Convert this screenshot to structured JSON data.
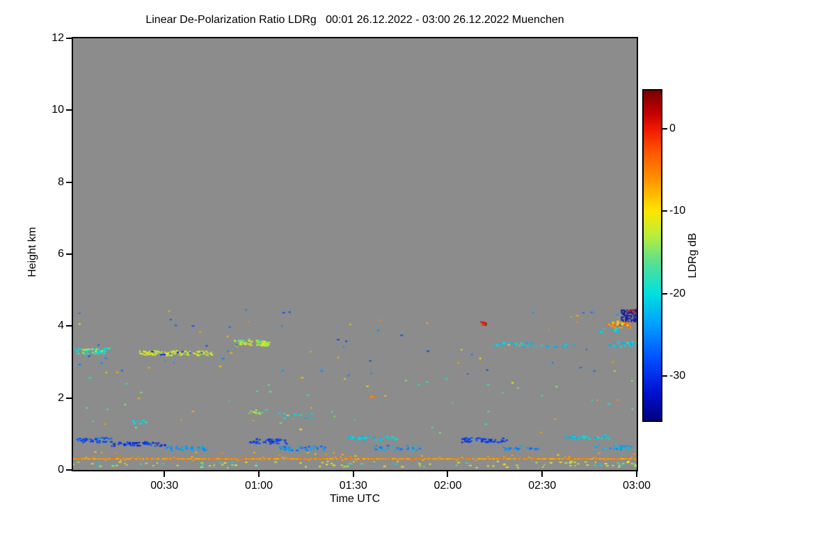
{
  "chart_data": {
    "type": "heatmap",
    "title": "Linear De-Polarization Ratio LDRg   00:01 26.12.2022 - 03:00 26.12.2022 Muenchen",
    "xlabel": "Time UTC",
    "ylabel": "Height km",
    "x_domain": [
      1,
      180
    ],
    "x_ticks": [
      "00:30",
      "01:00",
      "01:30",
      "02:00",
      "02:30",
      "03:00"
    ],
    "x_tick_minutes": [
      30,
      60,
      90,
      120,
      150,
      180
    ],
    "ylim": [
      0,
      12
    ],
    "y_ticks": [
      0,
      2,
      4,
      6,
      8,
      10,
      12
    ],
    "grid": false,
    "background_color": "#8c8c8c",
    "colorbar": {
      "label": "LDRg dB",
      "ticks": [
        0,
        -10,
        -20,
        -30
      ],
      "range": [
        4.6,
        -35.4
      ],
      "position": "right",
      "stops": [
        [
          4.6,
          "#7a0000"
        ],
        [
          2,
          "#c00000"
        ],
        [
          0,
          "#f01800"
        ],
        [
          -3,
          "#ff5a00"
        ],
        [
          -6,
          "#ff9000"
        ],
        [
          -10,
          "#ffe600"
        ],
        [
          -13,
          "#baee3a"
        ],
        [
          -16,
          "#5fe08c"
        ],
        [
          -20,
          "#00e0e0"
        ],
        [
          -24,
          "#009cff"
        ],
        [
          -28,
          "#004eff"
        ],
        [
          -32,
          "#0012d0"
        ],
        [
          -35.4,
          "#000080"
        ]
      ]
    },
    "features": [
      {
        "name": "aerosol-surface-line",
        "style": "line",
        "t0": 1,
        "t1": 180,
        "h": 0.31,
        "value": -6
      },
      {
        "name": "surface-specks-below-warm",
        "style": "specks",
        "t0": 1,
        "t1": 180,
        "h0": 0.08,
        "h1": 0.26,
        "value": -12,
        "density": 0.045
      },
      {
        "name": "surface-specks-below-cyan",
        "style": "specks",
        "t0": 1,
        "t1": 180,
        "h0": 0.1,
        "h1": 0.24,
        "value": -19,
        "density": 0.02
      },
      {
        "name": "surface-specks-above",
        "style": "specks",
        "t0": 1,
        "t1": 180,
        "h0": 0.38,
        "h1": 0.52,
        "value": -7,
        "density": 0.018
      },
      {
        "name": "low-band",
        "style": "specks",
        "t0": 2,
        "t1": 13,
        "h0": 0.78,
        "h1": 0.92,
        "value": -28,
        "density": 0.5
      },
      {
        "name": "low-band",
        "style": "specks",
        "t0": 13,
        "t1": 31,
        "h0": 0.68,
        "h1": 0.8,
        "value": -30,
        "density": 0.45
      },
      {
        "name": "low-band",
        "style": "specks",
        "t0": 30,
        "t1": 43,
        "h0": 0.56,
        "h1": 0.68,
        "value": -24,
        "density": 0.4
      },
      {
        "name": "low-band",
        "style": "specks",
        "t0": 57,
        "t1": 69,
        "h0": 0.74,
        "h1": 0.88,
        "value": -29,
        "density": 0.45
      },
      {
        "name": "low-band",
        "style": "specks",
        "t0": 66,
        "t1": 81,
        "h0": 0.56,
        "h1": 0.68,
        "value": -25,
        "density": 0.35
      },
      {
        "name": "low-band",
        "style": "specks",
        "t0": 88,
        "t1": 104,
        "h0": 0.84,
        "h1": 0.96,
        "value": -21,
        "density": 0.4
      },
      {
        "name": "low-band",
        "style": "specks",
        "t0": 96,
        "t1": 111,
        "h0": 0.56,
        "h1": 0.7,
        "value": -24,
        "density": 0.3
      },
      {
        "name": "low-band",
        "style": "specks",
        "t0": 124,
        "t1": 139,
        "h0": 0.78,
        "h1": 0.92,
        "value": -29,
        "density": 0.45
      },
      {
        "name": "low-band",
        "style": "specks",
        "t0": 137,
        "t1": 149,
        "h0": 0.56,
        "h1": 0.68,
        "value": -25,
        "density": 0.3
      },
      {
        "name": "low-band",
        "style": "specks",
        "t0": 157,
        "t1": 171,
        "h0": 0.88,
        "h1": 1.0,
        "value": -21,
        "density": 0.4
      },
      {
        "name": "low-band",
        "style": "specks",
        "t0": 166,
        "t1": 178,
        "h0": 0.58,
        "h1": 0.72,
        "value": -23,
        "density": 0.3
      },
      {
        "name": "mid-layer",
        "style": "specks",
        "t0": 1,
        "t1": 12,
        "h0": 3.24,
        "h1": 3.4,
        "value": -19,
        "density": 0.5
      },
      {
        "name": "mid-layer",
        "style": "specks",
        "t0": 3,
        "t1": 10,
        "h0": 3.28,
        "h1": 3.38,
        "value": -12,
        "density": 0.3
      },
      {
        "name": "mid-layer",
        "style": "specks",
        "t0": 22,
        "t1": 45,
        "h0": 3.2,
        "h1": 3.33,
        "value": -12,
        "density": 0.55
      },
      {
        "name": "mid-layer",
        "style": "specks",
        "t0": 25,
        "t1": 42,
        "h0": 3.22,
        "h1": 3.31,
        "value": -30,
        "density": 0.1
      },
      {
        "name": "mid-layer",
        "style": "specks",
        "t0": 52,
        "t1": 63,
        "h0": 3.46,
        "h1": 3.62,
        "value": -12,
        "density": 0.6
      },
      {
        "name": "mid-layer",
        "style": "specks",
        "t0": 53,
        "t1": 61,
        "h0": 3.54,
        "h1": 3.66,
        "value": -16,
        "density": 0.2
      },
      {
        "name": "mid-layer",
        "style": "specks",
        "t0": 134,
        "t1": 147,
        "h0": 3.44,
        "h1": 3.56,
        "value": -21,
        "density": 0.3
      },
      {
        "name": "mid-layer",
        "style": "specks",
        "t0": 149,
        "t1": 160,
        "h0": 3.42,
        "h1": 3.52,
        "value": -22,
        "density": 0.25
      },
      {
        "name": "mid-layer",
        "style": "specks",
        "t0": 171,
        "t1": 180,
        "h0": 3.44,
        "h1": 3.58,
        "value": -21,
        "density": 0.35
      },
      {
        "name": "edge-cloud",
        "style": "specks",
        "t0": 167,
        "t1": 174,
        "h0": 3.84,
        "h1": 3.96,
        "value": -20,
        "density": 0.25
      },
      {
        "name": "edge-cloud",
        "style": "specks",
        "t0": 170,
        "t1": 178,
        "h0": 3.96,
        "h1": 4.12,
        "value": -5,
        "density": 0.55
      },
      {
        "name": "edge-cloud",
        "style": "specks",
        "t0": 172,
        "t1": 177,
        "h0": 4.04,
        "h1": 4.16,
        "value": -11,
        "density": 0.25
      },
      {
        "name": "edge-cloud-core",
        "style": "patch",
        "t0": 175,
        "t1": 180,
        "h0": 4.14,
        "h1": 4.46,
        "value": -34,
        "density": 0.7
      },
      {
        "name": "edge-cloud",
        "style": "specks",
        "t0": 177,
        "t1": 180,
        "h0": 4.38,
        "h1": 4.5,
        "value": -1,
        "density": 0.3
      },
      {
        "name": "isolated-red-dot",
        "style": "specks",
        "t0": 130,
        "t1": 132,
        "h0": 4.04,
        "h1": 4.14,
        "value": 0,
        "density": 0.9
      },
      {
        "name": "isolated-orange-dot",
        "style": "specks",
        "t0": 94,
        "t1": 96,
        "h0": 2.0,
        "h1": 2.08,
        "value": -6,
        "density": 0.9
      },
      {
        "name": "isolated-green",
        "style": "specks",
        "t0": 56,
        "t1": 61,
        "h0": 1.56,
        "h1": 1.68,
        "value": -14,
        "density": 0.3
      },
      {
        "name": "isolated-cyan",
        "style": "specks",
        "t0": 19,
        "t1": 24,
        "h0": 1.3,
        "h1": 1.4,
        "value": -20,
        "density": 0.4
      },
      {
        "name": "isolated-cyan",
        "style": "specks",
        "t0": 64,
        "t1": 79,
        "h0": 1.46,
        "h1": 1.6,
        "value": -21,
        "density": 0.12
      },
      {
        "name": "noise-green",
        "style": "specks",
        "t0": 2,
        "t1": 179,
        "h0": 1.0,
        "h1": 2.6,
        "value": -17,
        "density": 0.0022
      },
      {
        "name": "noise-blue",
        "style": "specks",
        "t0": 2,
        "t1": 179,
        "h0": 2.6,
        "h1": 4.6,
        "value": -26,
        "density": 0.0022
      },
      {
        "name": "noise-warm",
        "style": "specks",
        "t0": 2,
        "t1": 179,
        "h0": 1.0,
        "h1": 4.5,
        "value": -8,
        "density": 0.0012
      }
    ]
  }
}
